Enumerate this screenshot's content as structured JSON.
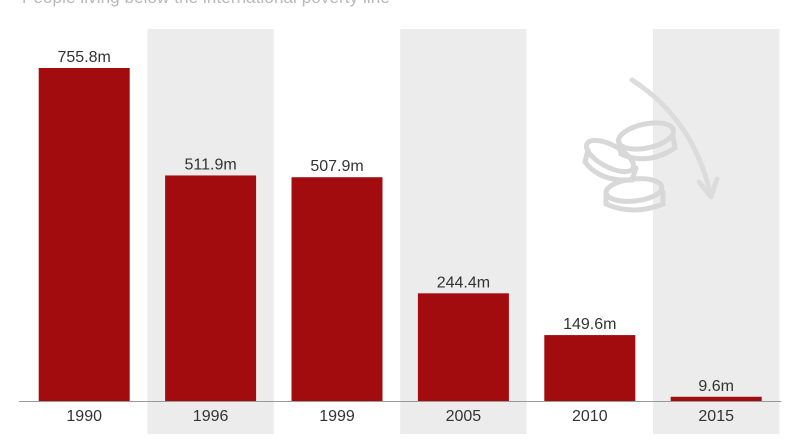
{
  "subtitle": "People living below the international poverty line",
  "colors": {
    "bar": "#a30c0e",
    "band": "#ececec",
    "axis": "#999999",
    "icon": "#d8d8d8"
  },
  "icons": {
    "decoration": "coins-icon",
    "trend_arrow": "curved-arrow-down-icon"
  },
  "chart_data": {
    "type": "bar",
    "title": "",
    "subtitle": "People living below the international poverty line",
    "categories": [
      "1990",
      "1996",
      "1999",
      "2005",
      "2010",
      "2015"
    ],
    "values": [
      755.8,
      511.9,
      507.9,
      244.4,
      149.6,
      9.6
    ],
    "value_labels": [
      "755.8m",
      "511.9m",
      "507.9m",
      "244.4m",
      "149.6m",
      "9.6m"
    ],
    "unit": "m",
    "xlabel": "",
    "ylabel": "",
    "ylim": [
      0,
      800
    ],
    "grid": false,
    "legend": "none",
    "alternating_bands": true
  }
}
